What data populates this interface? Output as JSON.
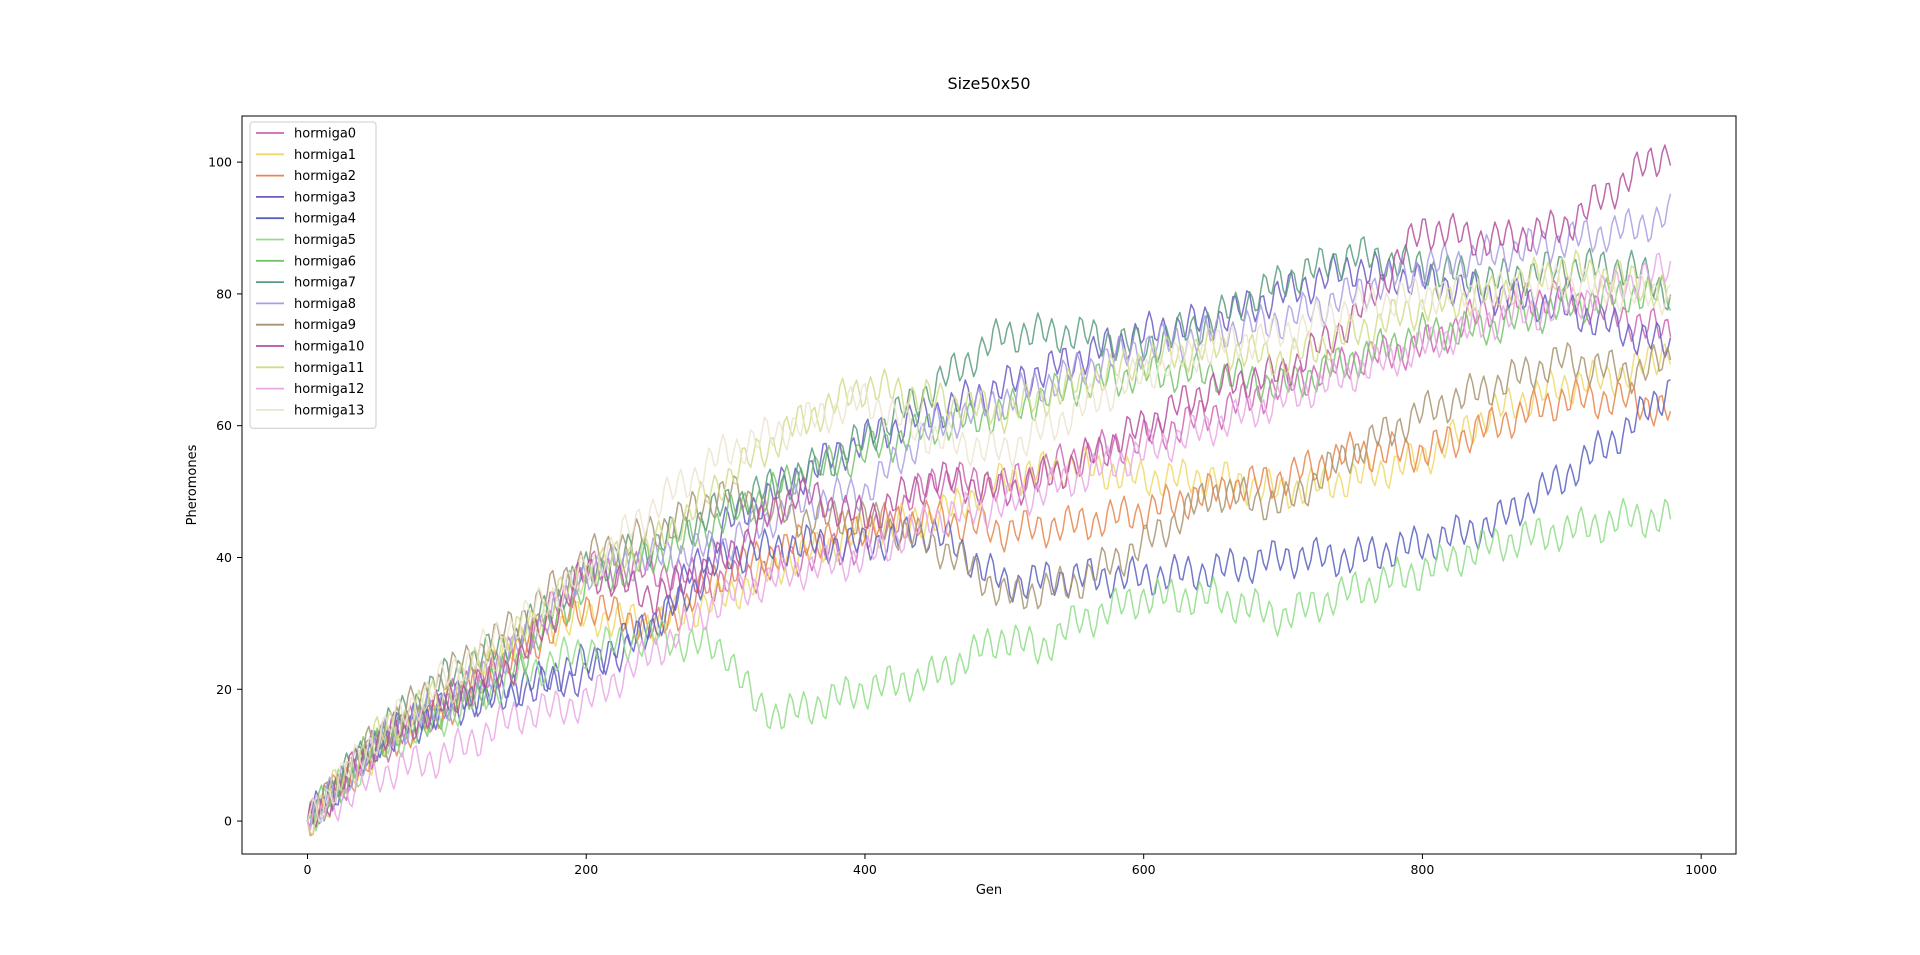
{
  "chart_data": {
    "type": "line",
    "title": "Size50x50",
    "xlabel": "Gen",
    "ylabel": "Pheromones",
    "xlim": [
      -47,
      1025
    ],
    "ylim": [
      -5,
      107
    ],
    "xticks": [
      0,
      200,
      400,
      600,
      800,
      1000
    ],
    "yticks": [
      0,
      20,
      40,
      60,
      80,
      100
    ],
    "grid": false,
    "legend_position": "upper-left",
    "series": [
      {
        "name": "hormiga0",
        "color": "#cc66b3",
        "x": [
          0,
          50,
          100,
          150,
          200,
          250,
          300,
          350,
          400,
          450,
          500,
          550,
          600,
          650,
          700,
          750,
          800,
          850,
          900,
          950,
          978
        ],
        "y": [
          0,
          11,
          18,
          26,
          38,
          38,
          36,
          40,
          42,
          52,
          51,
          55,
          58,
          62,
          66,
          70,
          72,
          78,
          80,
          76,
          74
        ]
      },
      {
        "name": "hormiga1",
        "color": "#eed868",
        "x": [
          0,
          50,
          100,
          150,
          200,
          250,
          300,
          350,
          400,
          450,
          500,
          550,
          600,
          650,
          700,
          750,
          800,
          850,
          900,
          950,
          978
        ],
        "y": [
          0,
          11,
          18,
          28,
          31,
          30,
          34,
          40,
          44,
          46,
          52,
          54,
          52,
          52,
          50,
          52,
          55,
          62,
          66,
          68,
          72
        ]
      },
      {
        "name": "hormiga2",
        "color": "#e8864f",
        "x": [
          0,
          50,
          100,
          150,
          200,
          250,
          300,
          350,
          400,
          450,
          500,
          550,
          600,
          650,
          700,
          750,
          800,
          850,
          900,
          950,
          978
        ],
        "y": [
          0,
          11,
          17,
          25,
          33,
          29,
          38,
          42,
          45,
          46,
          44,
          45,
          47,
          50,
          52,
          56,
          56,
          60,
          64,
          64,
          62
        ]
      },
      {
        "name": "hormiga3",
        "color": "#6a5bc4",
        "x": [
          0,
          50,
          100,
          150,
          200,
          250,
          300,
          350,
          400,
          450,
          500,
          550,
          600,
          650,
          700,
          750,
          800,
          850,
          900,
          950,
          978
        ],
        "y": [
          0,
          12,
          18,
          20,
          22,
          30,
          45,
          52,
          58,
          62,
          66,
          70,
          74,
          76,
          80,
          84,
          82,
          80,
          78,
          74,
          72
        ]
      },
      {
        "name": "hormiga4",
        "color": "#5a62c0",
        "x": [
          0,
          50,
          100,
          150,
          200,
          250,
          300,
          350,
          400,
          450,
          500,
          550,
          600,
          650,
          700,
          750,
          800,
          850,
          900,
          950,
          978
        ],
        "y": [
          0,
          12,
          17,
          20,
          24,
          30,
          40,
          42,
          42,
          44,
          36,
          37,
          37,
          38,
          40,
          40,
          42,
          45,
          52,
          60,
          66
        ]
      },
      {
        "name": "hormiga5",
        "color": "#90dc88",
        "x": [
          0,
          50,
          100,
          150,
          200,
          250,
          300,
          320,
          340,
          400,
          450,
          500,
          525,
          550,
          600,
          650,
          700,
          750,
          800,
          850,
          900,
          950,
          978
        ],
        "y": [
          0,
          11,
          16,
          22,
          26,
          28,
          26,
          18,
          16,
          20,
          22,
          28,
          26,
          30,
          34,
          34,
          31,
          35,
          38,
          42,
          44,
          46,
          46
        ]
      },
      {
        "name": "hormiga6",
        "color": "#74c46a",
        "x": [
          0,
          50,
          100,
          150,
          200,
          250,
          300,
          350,
          400,
          450,
          500,
          550,
          600,
          650,
          700,
          750,
          800,
          850,
          900,
          950,
          978
        ],
        "y": [
          0,
          12,
          17,
          24,
          36,
          40,
          46,
          52,
          56,
          60,
          62,
          66,
          68,
          68,
          66,
          70,
          74,
          75,
          78,
          80,
          80
        ]
      },
      {
        "name": "hormiga7",
        "color": "#5a9c7c",
        "x": [
          0,
          50,
          100,
          150,
          200,
          250,
          300,
          350,
          400,
          450,
          500,
          550,
          600,
          650,
          700,
          750,
          800,
          850,
          900,
          950,
          978
        ],
        "y": [
          0,
          13,
          22,
          28,
          38,
          42,
          48,
          52,
          58,
          66,
          74,
          74,
          72,
          76,
          82,
          86,
          84,
          82,
          84,
          84,
          80
        ]
      },
      {
        "name": "hormiga8",
        "color": "#a99ee4",
        "x": [
          0,
          50,
          100,
          150,
          200,
          250,
          300,
          350,
          400,
          450,
          500,
          550,
          600,
          650,
          700,
          750,
          800,
          850,
          900,
          950,
          978
        ],
        "y": [
          0,
          12,
          18,
          26,
          38,
          40,
          42,
          48,
          50,
          60,
          64,
          68,
          72,
          74,
          76,
          80,
          84,
          86,
          88,
          90,
          92
        ]
      },
      {
        "name": "hormiga9",
        "color": "#a89470",
        "x": [
          0,
          50,
          100,
          150,
          200,
          250,
          300,
          350,
          400,
          450,
          480,
          500,
          550,
          600,
          650,
          700,
          750,
          800,
          850,
          900,
          950,
          978
        ],
        "y": [
          0,
          13,
          22,
          30,
          40,
          44,
          50,
          46,
          46,
          42,
          38,
          34,
          36,
          42,
          50,
          48,
          56,
          62,
          66,
          70,
          68,
          70
        ]
      },
      {
        "name": "hormiga10",
        "color": "#b5509c",
        "x": [
          0,
          50,
          100,
          150,
          200,
          250,
          300,
          350,
          400,
          450,
          500,
          550,
          600,
          650,
          700,
          750,
          800,
          850,
          900,
          950,
          978
        ],
        "y": [
          0,
          12,
          18,
          24,
          38,
          34,
          40,
          50,
          46,
          52,
          50,
          54,
          60,
          66,
          68,
          76,
          90,
          88,
          90,
          98,
          102
        ]
      },
      {
        "name": "hormiga11",
        "color": "#d4dc88",
        "x": [
          0,
          50,
          100,
          150,
          200,
          250,
          300,
          350,
          400,
          450,
          500,
          550,
          600,
          650,
          700,
          750,
          800,
          850,
          900,
          950,
          978
        ],
        "y": [
          0,
          13,
          20,
          28,
          38,
          42,
          52,
          60,
          66,
          64,
          62,
          66,
          70,
          72,
          70,
          74,
          78,
          80,
          84,
          82,
          80
        ]
      },
      {
        "name": "hormiga12",
        "color": "#e8a8e4",
        "x": [
          0,
          50,
          100,
          150,
          200,
          250,
          300,
          350,
          400,
          450,
          500,
          550,
          600,
          650,
          700,
          750,
          800,
          850,
          900,
          950,
          978
        ],
        "y": [
          0,
          7,
          10,
          16,
          18,
          26,
          34,
          38,
          40,
          46,
          48,
          52,
          56,
          60,
          64,
          68,
          72,
          76,
          78,
          82,
          84
        ]
      },
      {
        "name": "hormiga13",
        "color": "#ece4cc",
        "x": [
          0,
          50,
          100,
          150,
          200,
          250,
          300,
          350,
          400,
          450,
          500,
          550,
          600,
          650,
          700,
          750,
          800,
          850,
          900,
          950,
          978
        ],
        "y": [
          0,
          13,
          22,
          30,
          38,
          48,
          56,
          60,
          64,
          58,
          56,
          62,
          68,
          72,
          74,
          78,
          80,
          80,
          82,
          80,
          80
        ]
      }
    ]
  }
}
